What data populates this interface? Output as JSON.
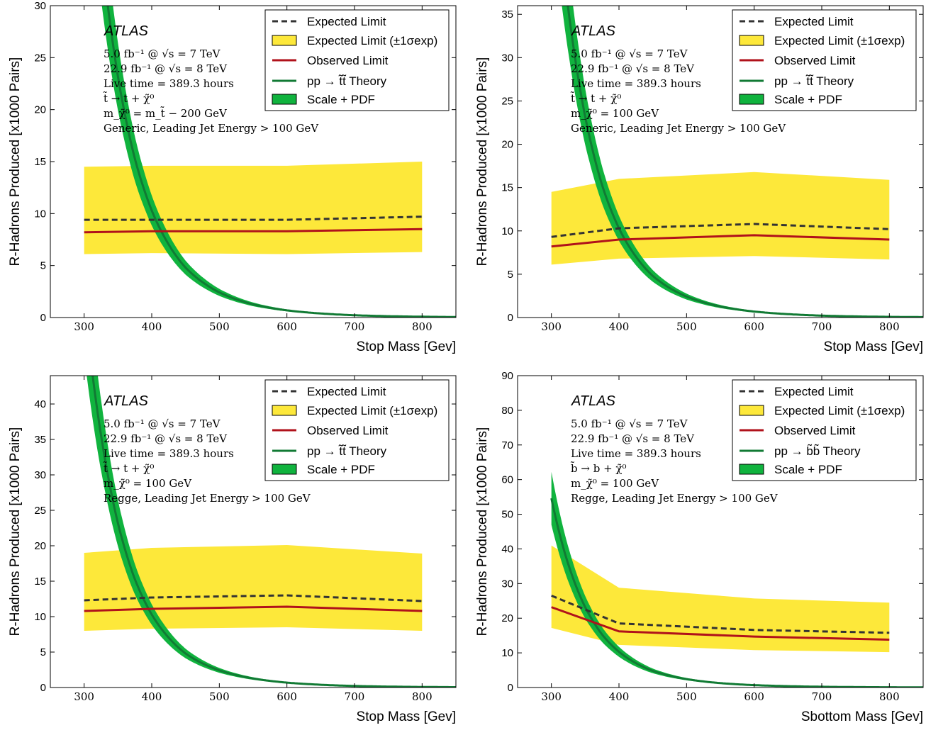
{
  "chart_data": [
    {
      "type": "line",
      "watermark": "ATLAS",
      "info_lines": [
        "5.0  fb⁻¹ @ √s = 7 TeV",
        "22.9 fb⁻¹ @ √s = 8 TeV",
        "Live time = 389.3 hours",
        "t̃ →  t + χ̃⁰",
        "m_χ̃⁰ = m_t̃  −  200 GeV",
        "Generic,  Leading Jet Energy > 100 GeV"
      ],
      "xlabel": "Stop Mass [Gev]",
      "ylabel": "R-Hadrons Produced [x1000 Pairs]",
      "xlim": [
        250,
        850
      ],
      "ylim": [
        0,
        30
      ],
      "xticks": [
        300,
        400,
        500,
        600,
        700,
        800
      ],
      "yticks": [
        0,
        5,
        10,
        15,
        20,
        25,
        30
      ],
      "legend_position": "top-right",
      "legend": [
        "Expected Limit",
        "Expected Limit (±1σexp)",
        "Observed Limit",
        "pp → t̃t̃  Theory",
        "Scale + PDF"
      ],
      "colors": {
        "expected": "#333333",
        "band": "#fde83a",
        "observed": "#b0121b",
        "theory": "#117a34",
        "theory_band": "#10b33e"
      },
      "x": [
        300,
        400,
        600,
        800
      ],
      "expected": [
        9.4,
        9.4,
        9.4,
        9.7
      ],
      "band_low": [
        6.1,
        6.2,
        6.1,
        6.3
      ],
      "band_high": [
        14.5,
        14.6,
        14.6,
        15.0
      ],
      "observed": [
        8.2,
        8.3,
        8.3,
        8.5
      ],
      "theory": {
        "x": [
          300,
          350,
          375,
          400,
          450,
          500,
          550,
          600,
          650,
          700,
          750,
          800,
          850
        ],
        "y": [
          54.6,
          23.2,
          15.3,
          10.3,
          4.8,
          2.42,
          1.27,
          0.69,
          0.39,
          0.22,
          0.13,
          0.08,
          0.05
        ],
        "band_rel": 0.14
      }
    },
    {
      "type": "line",
      "watermark": "ATLAS",
      "info_lines": [
        "5.0  fb⁻¹ @ √s = 7 TeV",
        "22.9 fb⁻¹ @ √s = 8 TeV",
        "Live time = 389.3 hours",
        "t̃ →  t + χ̃⁰",
        "m_χ̃⁰ = 100 GeV",
        "Generic,  Leading Jet Energy > 100 GeV"
      ],
      "xlabel": "Stop Mass [Gev]",
      "ylabel": "R-Hadrons Produced [x1000 Pairs]",
      "xlim": [
        250,
        850
      ],
      "ylim": [
        0,
        36
      ],
      "xticks": [
        300,
        400,
        500,
        600,
        700,
        800
      ],
      "yticks": [
        0,
        5,
        10,
        15,
        20,
        25,
        30,
        35
      ],
      "legend_position": "top-right",
      "legend": [
        "Expected Limit",
        "Expected Limit (±1σexp)",
        "Observed Limit",
        "pp → t̃t̃  Theory",
        "Scale + PDF"
      ],
      "colors": {
        "expected": "#333333",
        "band": "#fde83a",
        "observed": "#b0121b",
        "theory": "#117a34",
        "theory_band": "#10b33e"
      },
      "x": [
        300,
        400,
        600,
        800
      ],
      "expected": [
        9.3,
        10.3,
        10.8,
        10.2
      ],
      "band_low": [
        6.1,
        6.8,
        7.1,
        6.7
      ],
      "band_high": [
        14.5,
        16.0,
        16.8,
        15.9
      ],
      "observed": [
        8.2,
        9.0,
        9.5,
        9.0
      ],
      "theory": {
        "x": [
          300,
          350,
          375,
          400,
          450,
          500,
          550,
          600,
          650,
          700,
          750,
          800,
          850
        ],
        "y": [
          54.6,
          23.2,
          15.3,
          10.3,
          4.8,
          2.42,
          1.27,
          0.69,
          0.39,
          0.22,
          0.13,
          0.08,
          0.05
        ],
        "band_rel": 0.14
      }
    },
    {
      "type": "line",
      "watermark": "ATLAS",
      "info_lines": [
        "5.0  fb⁻¹ @ √s = 7 TeV",
        "22.9 fb⁻¹ @ √s = 8 TeV",
        "Live time = 389.3 hours",
        "t̃ →  t + χ̃⁰",
        "m_χ̃⁰ = 100 GeV",
        "Regge,  Leading Jet Energy > 100 GeV"
      ],
      "xlabel": "Stop Mass [Gev]",
      "ylabel": "R-Hadrons Produced [x1000 Pairs]",
      "xlim": [
        250,
        850
      ],
      "ylim": [
        0,
        44
      ],
      "xticks": [
        300,
        400,
        500,
        600,
        700,
        800
      ],
      "yticks": [
        0,
        5,
        10,
        15,
        20,
        25,
        30,
        35,
        40
      ],
      "legend_position": "top-right",
      "legend": [
        "Expected Limit",
        "Expected Limit (±1σexp)",
        "Observed Limit",
        "pp → t̃t̃  Theory",
        "Scale + PDF"
      ],
      "colors": {
        "expected": "#333333",
        "band": "#fde83a",
        "observed": "#b0121b",
        "theory": "#117a34",
        "theory_band": "#10b33e"
      },
      "x": [
        300,
        400,
        600,
        800
      ],
      "expected": [
        12.3,
        12.7,
        13.0,
        12.2
      ],
      "band_low": [
        8.0,
        8.3,
        8.5,
        8.0
      ],
      "band_high": [
        19.0,
        19.7,
        20.1,
        18.9
      ],
      "observed": [
        10.8,
        11.1,
        11.4,
        10.8
      ],
      "theory": {
        "x": [
          300,
          350,
          375,
          400,
          450,
          500,
          550,
          600,
          650,
          700,
          750,
          800,
          850
        ],
        "y": [
          54.6,
          23.2,
          15.3,
          10.3,
          4.8,
          2.42,
          1.27,
          0.69,
          0.39,
          0.22,
          0.13,
          0.08,
          0.05
        ],
        "band_rel": 0.14
      }
    },
    {
      "type": "line",
      "watermark": "ATLAS",
      "info_lines": [
        "5.0  fb⁻¹ @ √s = 7 TeV",
        "22.9 fb⁻¹ @ √s = 8 TeV",
        "Live time = 389.3 hours",
        "b̃ →  b + χ̃⁰",
        "m_χ̃⁰ = 100 GeV",
        "Regge,  Leading Jet Energy > 100 GeV"
      ],
      "xlabel": "Sbottom Mass [Gev]",
      "ylabel": "R-Hadrons Produced [x1000 Pairs]",
      "xlim": [
        250,
        850
      ],
      "ylim": [
        0,
        90
      ],
      "xticks": [
        300,
        400,
        500,
        600,
        700,
        800
      ],
      "yticks": [
        0,
        10,
        20,
        30,
        40,
        50,
        60,
        70,
        80,
        90
      ],
      "legend_position": "top-right",
      "legend": [
        "Expected Limit",
        "Expected Limit (±1σexp)",
        "Observed Limit",
        "pp → b̃b̃  Theory",
        "Scale + PDF"
      ],
      "colors": {
        "expected": "#333333",
        "band": "#fde83a",
        "observed": "#b0121b",
        "theory": "#117a34",
        "theory_band": "#10b33e"
      },
      "x": [
        300,
        400,
        600,
        800
      ],
      "expected": [
        26.5,
        18.5,
        16.6,
        15.8
      ],
      "band_low": [
        17.2,
        12.3,
        10.8,
        10.2
      ],
      "band_high": [
        41.0,
        28.8,
        25.7,
        24.5
      ],
      "observed": [
        23.2,
        16.2,
        14.7,
        13.8
      ],
      "theory": {
        "x": [
          300,
          350,
          375,
          400,
          450,
          500,
          550,
          600,
          650,
          700,
          750,
          800,
          850
        ],
        "y": [
          54.6,
          23.2,
          15.3,
          10.3,
          4.8,
          2.42,
          1.27,
          0.69,
          0.39,
          0.22,
          0.13,
          0.08,
          0.05
        ],
        "band_rel": 0.14
      }
    }
  ]
}
